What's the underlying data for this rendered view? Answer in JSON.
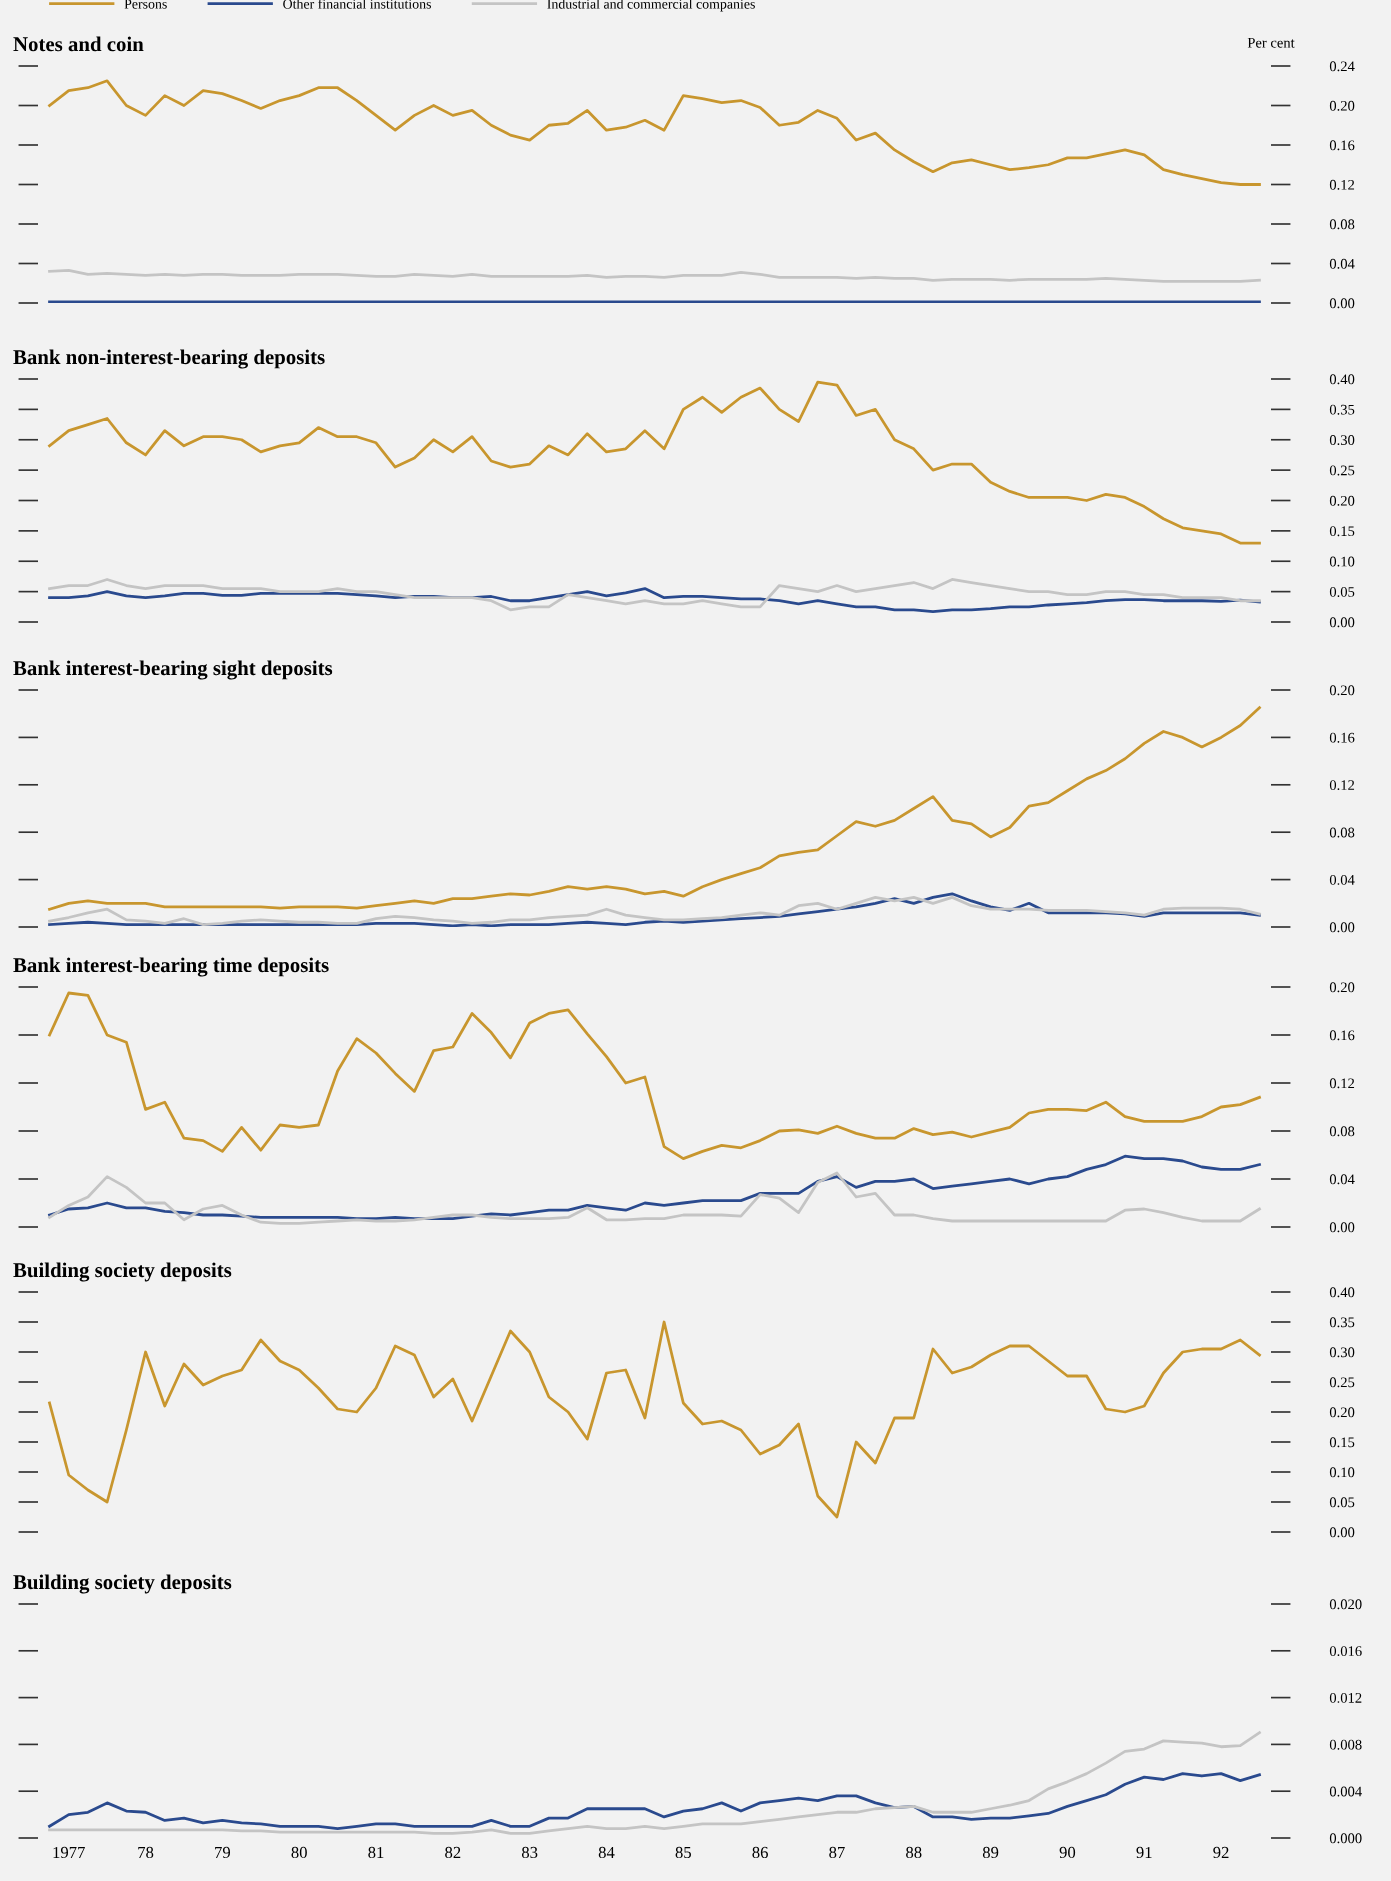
{
  "chart_data": [
    {
      "type": "line",
      "title": "Notes and coin",
      "legend": "top",
      "tick_labels": "y",
      "annotations": [
        "Per cent"
      ],
      "categories": [
        null,
        null,
        null,
        null,
        null,
        null,
        null,
        null,
        null,
        null,
        null,
        null,
        null,
        null,
        null,
        null,
        null,
        null,
        null,
        null,
        null,
        null,
        null,
        null,
        null,
        null,
        null,
        null,
        null,
        null,
        null,
        null,
        null,
        null,
        null,
        null,
        null,
        null,
        null,
        null,
        null,
        null,
        null,
        null,
        null,
        null,
        null,
        null,
        null,
        null,
        null,
        null,
        null,
        null,
        null,
        null,
        null,
        null,
        null,
        null,
        null,
        null,
        null,
        null
      ],
      "ylim": [
        0,
        0.24
      ],
      "yticks": [
        {
          "value": 0,
          "label": "0.00"
        },
        {
          "value": 0.04,
          "label": "0.04"
        },
        {
          "value": 0.08,
          "label": "0.08"
        },
        {
          "value": 0.12,
          "label": "0.12"
        },
        {
          "value": 0.16,
          "label": "0.16"
        },
        {
          "value": 0.2,
          "label": "0.20"
        },
        {
          "value": 0.24,
          "label": "0.24"
        }
      ],
      "series": [
        {
          "name": "Persons",
          "color": "#c8962e",
          "values": [
            0.2,
            0.215,
            0.218,
            0.225,
            0.2,
            0.19,
            0.21,
            0.2,
            0.215,
            0.212,
            0.205,
            0.197,
            0.205,
            0.21,
            0.218,
            0.218,
            0.205,
            0.19,
            0.175,
            0.19,
            0.2,
            0.19,
            0.195,
            0.18,
            0.17,
            0.165,
            0.18,
            0.182,
            0.195,
            0.175,
            0.178,
            0.185,
            0.175,
            0.21,
            0.207,
            0.203,
            0.205,
            0.198,
            0.18,
            0.183,
            0.195,
            0.187,
            0.165,
            0.172,
            0.155,
            0.143,
            0.133,
            0.142,
            0.145,
            0.14,
            0.135,
            0.137,
            0.14,
            0.147,
            0.147,
            0.151,
            0.155,
            0.15,
            0.135,
            0.13,
            0.126,
            0.122,
            0.12,
            0.12
          ]
        },
        {
          "name": "Other financial institutions",
          "color": "#2a4a8e",
          "values": [
            0.001,
            0.001,
            0.001,
            0.001,
            0.001,
            0.001,
            0.001,
            0.001,
            0.001,
            0.001,
            0.001,
            0.001,
            0.001,
            0.001,
            0.001,
            0.001,
            0.001,
            0.001,
            0.001,
            0.001,
            0.001,
            0.001,
            0.001,
            0.001,
            0.001,
            0.001,
            0.001,
            0.001,
            0.001,
            0.001,
            0.001,
            0.001,
            0.001,
            0.001,
            0.001,
            0.001,
            0.001,
            0.001,
            0.001,
            0.001,
            0.001,
            0.001,
            0.001,
            0.001,
            0.001,
            0.001,
            0.001,
            0.001,
            0.001,
            0.001,
            0.001,
            0.001,
            0.001,
            0.001,
            0.001,
            0.001,
            0.001,
            0.001,
            0.001,
            0.001,
            0.001,
            0.001,
            0.001,
            0.001
          ]
        },
        {
          "name": "Industrial and commercial companies",
          "color": "#c4c4c4",
          "values": [
            0.032,
            0.033,
            0.029,
            0.03,
            0.029,
            0.028,
            0.029,
            0.028,
            0.029,
            0.029,
            0.028,
            0.028,
            0.028,
            0.029,
            0.029,
            0.029,
            0.028,
            0.027,
            0.027,
            0.029,
            0.028,
            0.027,
            0.029,
            0.027,
            0.027,
            0.027,
            0.027,
            0.027,
            0.028,
            0.026,
            0.027,
            0.027,
            0.026,
            0.028,
            0.028,
            0.028,
            0.031,
            0.029,
            0.026,
            0.026,
            0.026,
            0.026,
            0.025,
            0.026,
            0.025,
            0.025,
            0.023,
            0.024,
            0.024,
            0.024,
            0.023,
            0.024,
            0.024,
            0.024,
            0.024,
            0.025,
            0.024,
            0.023,
            0.022,
            0.022,
            0.022,
            0.022,
            0.022,
            0.023
          ]
        }
      ]
    },
    {
      "type": "line",
      "title": "Bank non-interest-bearing deposits",
      "tick_labels": "y",
      "categories": [
        null,
        null,
        null,
        null,
        null,
        null,
        null,
        null,
        null,
        null,
        null,
        null,
        null,
        null,
        null,
        null,
        null,
        null,
        null,
        null,
        null,
        null,
        null,
        null,
        null,
        null,
        null,
        null,
        null,
        null,
        null,
        null,
        null,
        null,
        null,
        null,
        null,
        null,
        null,
        null,
        null,
        null,
        null,
        null,
        null,
        null,
        null,
        null,
        null,
        null,
        null,
        null,
        null,
        null,
        null,
        null,
        null,
        null,
        null,
        null,
        null,
        null,
        null,
        null
      ],
      "ylim": [
        0,
        0.4
      ],
      "yticks": [
        {
          "value": 0,
          "label": "0.00"
        },
        {
          "value": 0.05,
          "label": "0.05"
        },
        {
          "value": 0.1,
          "label": "0.10"
        },
        {
          "value": 0.15,
          "label": "0.15"
        },
        {
          "value": 0.2,
          "label": "0.20"
        },
        {
          "value": 0.25,
          "label": "0.25"
        },
        {
          "value": 0.3,
          "label": "0.30"
        },
        {
          "value": 0.35,
          "label": "0.35"
        },
        {
          "value": 0.4,
          "label": "0.40"
        }
      ],
      "series": [
        {
          "color": "#c8962e",
          "values": [
            0.29,
            0.315,
            0.325,
            0.335,
            0.295,
            0.275,
            0.315,
            0.29,
            0.305,
            0.305,
            0.3,
            0.28,
            0.29,
            0.295,
            0.32,
            0.305,
            0.305,
            0.295,
            0.255,
            0.27,
            0.3,
            0.28,
            0.305,
            0.265,
            0.255,
            0.26,
            0.29,
            0.275,
            0.31,
            0.28,
            0.285,
            0.315,
            0.285,
            0.35,
            0.37,
            0.345,
            0.37,
            0.385,
            0.35,
            0.33,
            0.395,
            0.39,
            0.34,
            0.35,
            0.3,
            0.285,
            0.25,
            0.26,
            0.26,
            0.23,
            0.215,
            0.205,
            0.205,
            0.205,
            0.2,
            0.21,
            0.205,
            0.19,
            0.17,
            0.155,
            0.15,
            0.145,
            0.13,
            0.13
          ]
        },
        {
          "color": "#2a4a8e",
          "values": [
            0.04,
            0.04,
            0.043,
            0.05,
            0.043,
            0.04,
            0.043,
            0.047,
            0.047,
            0.044,
            0.044,
            0.047,
            0.047,
            0.047,
            0.047,
            0.047,
            0.045,
            0.043,
            0.04,
            0.042,
            0.042,
            0.04,
            0.04,
            0.042,
            0.035,
            0.035,
            0.04,
            0.045,
            0.05,
            0.043,
            0.048,
            0.055,
            0.04,
            0.042,
            0.042,
            0.04,
            0.038,
            0.038,
            0.035,
            0.03,
            0.035,
            0.03,
            0.025,
            0.025,
            0.02,
            0.02,
            0.017,
            0.02,
            0.02,
            0.022,
            0.025,
            0.025,
            0.028,
            0.03,
            0.032,
            0.035,
            0.037,
            0.037,
            0.035,
            0.035,
            0.035,
            0.034,
            0.036,
            0.033
          ]
        },
        {
          "color": "#c4c4c4",
          "values": [
            0.055,
            0.06,
            0.06,
            0.07,
            0.06,
            0.055,
            0.06,
            0.06,
            0.06,
            0.055,
            0.055,
            0.055,
            0.05,
            0.05,
            0.05,
            0.055,
            0.05,
            0.05,
            0.045,
            0.04,
            0.04,
            0.04,
            0.04,
            0.035,
            0.02,
            0.025,
            0.025,
            0.045,
            0.04,
            0.035,
            0.03,
            0.035,
            0.03,
            0.03,
            0.035,
            0.03,
            0.025,
            0.025,
            0.06,
            0.055,
            0.05,
            0.06,
            0.05,
            0.055,
            0.06,
            0.065,
            0.055,
            0.07,
            0.065,
            0.06,
            0.055,
            0.05,
            0.05,
            0.045,
            0.045,
            0.05,
            0.05,
            0.045,
            0.045,
            0.04,
            0.04,
            0.04,
            0.035,
            0.035
          ]
        }
      ]
    },
    {
      "type": "line",
      "title": "Bank interest-bearing sight deposits",
      "tick_labels": "y",
      "categories": [
        null,
        null,
        null,
        null,
        null,
        null,
        null,
        null,
        null,
        null,
        null,
        null,
        null,
        null,
        null,
        null,
        null,
        null,
        null,
        null,
        null,
        null,
        null,
        null,
        null,
        null,
        null,
        null,
        null,
        null,
        null,
        null,
        null,
        null,
        null,
        null,
        null,
        null,
        null,
        null,
        null,
        null,
        null,
        null,
        null,
        null,
        null,
        null,
        null,
        null,
        null,
        null,
        null,
        null,
        null,
        null,
        null,
        null,
        null,
        null,
        null,
        null,
        null,
        null
      ],
      "ylim": [
        0,
        0.2
      ],
      "yticks": [
        {
          "value": 0,
          "label": "0.00"
        },
        {
          "value": 0.04,
          "label": "0.04"
        },
        {
          "value": 0.08,
          "label": "0.08"
        },
        {
          "value": 0.12,
          "label": "0.12"
        },
        {
          "value": 0.16,
          "label": "0.16"
        },
        {
          "value": 0.2,
          "label": "0.20"
        }
      ],
      "series": [
        {
          "color": "#c8962e",
          "values": [
            0.015,
            0.02,
            0.022,
            0.02,
            0.02,
            0.02,
            0.017,
            0.017,
            0.017,
            0.017,
            0.017,
            0.017,
            0.016,
            0.017,
            0.017,
            0.017,
            0.016,
            0.018,
            0.02,
            0.022,
            0.02,
            0.024,
            0.024,
            0.026,
            0.028,
            0.027,
            0.03,
            0.034,
            0.032,
            0.034,
            0.032,
            0.028,
            0.03,
            0.026,
            0.034,
            0.04,
            0.045,
            0.05,
            0.06,
            0.063,
            0.065,
            0.077,
            0.089,
            0.085,
            0.09,
            0.1,
            0.11,
            0.09,
            0.087,
            0.076,
            0.084,
            0.102,
            0.105,
            0.115,
            0.125,
            0.132,
            0.142,
            0.155,
            0.165,
            0.16,
            0.152,
            0.16,
            0.17,
            0.185
          ]
        },
        {
          "color": "#2a4a8e",
          "values": [
            0.002,
            0.003,
            0.004,
            0.003,
            0.002,
            0.002,
            0.002,
            0.002,
            0.002,
            0.002,
            0.002,
            0.002,
            0.002,
            0.002,
            0.002,
            0.002,
            0.002,
            0.003,
            0.003,
            0.003,
            0.002,
            0.001,
            0.002,
            0.001,
            0.002,
            0.002,
            0.002,
            0.003,
            0.004,
            0.003,
            0.002,
            0.004,
            0.005,
            0.004,
            0.005,
            0.006,
            0.007,
            0.008,
            0.009,
            0.011,
            0.013,
            0.015,
            0.017,
            0.02,
            0.024,
            0.02,
            0.025,
            0.028,
            0.022,
            0.017,
            0.014,
            0.02,
            0.012,
            0.012,
            0.012,
            0.012,
            0.011,
            0.009,
            0.012,
            0.012,
            0.012,
            0.012,
            0.012,
            0.01
          ]
        },
        {
          "color": "#c4c4c4",
          "values": [
            0.005,
            0.008,
            0.012,
            0.015,
            0.006,
            0.005,
            0.003,
            0.007,
            0.002,
            0.003,
            0.005,
            0.006,
            0.005,
            0.004,
            0.004,
            0.003,
            0.003,
            0.007,
            0.009,
            0.008,
            0.006,
            0.005,
            0.003,
            0.004,
            0.006,
            0.006,
            0.008,
            0.009,
            0.01,
            0.015,
            0.01,
            0.008,
            0.006,
            0.006,
            0.007,
            0.008,
            0.01,
            0.012,
            0.01,
            0.018,
            0.02,
            0.015,
            0.02,
            0.025,
            0.022,
            0.025,
            0.02,
            0.025,
            0.018,
            0.015,
            0.015,
            0.015,
            0.014,
            0.014,
            0.014,
            0.013,
            0.012,
            0.01,
            0.015,
            0.016,
            0.016,
            0.016,
            0.015,
            0.011
          ]
        }
      ]
    },
    {
      "type": "line",
      "title": "Bank interest-bearing time deposits",
      "tick_labels": "y",
      "categories": [
        null,
        null,
        null,
        null,
        null,
        null,
        null,
        null,
        null,
        null,
        null,
        null,
        null,
        null,
        null,
        null,
        null,
        null,
        null,
        null,
        null,
        null,
        null,
        null,
        null,
        null,
        null,
        null,
        null,
        null,
        null,
        null,
        null,
        null,
        null,
        null,
        null,
        null,
        null,
        null,
        null,
        null,
        null,
        null,
        null,
        null,
        null,
        null,
        null,
        null,
        null,
        null,
        null,
        null,
        null,
        null,
        null,
        null,
        null,
        null,
        null,
        null,
        null,
        null
      ],
      "ylim": [
        0,
        0.2
      ],
      "yticks": [
        {
          "value": 0,
          "label": "0.00"
        },
        {
          "value": 0.04,
          "label": "0.04"
        },
        {
          "value": 0.08,
          "label": "0.08"
        },
        {
          "value": 0.12,
          "label": "0.12"
        },
        {
          "value": 0.16,
          "label": "0.16"
        },
        {
          "value": 0.2,
          "label": "0.20"
        }
      ],
      "series": [
        {
          "color": "#c8962e",
          "values": [
            0.16,
            0.195,
            0.193,
            0.16,
            0.154,
            0.098,
            0.104,
            0.074,
            0.072,
            0.063,
            0.083,
            0.064,
            0.085,
            0.083,
            0.085,
            0.13,
            0.157,
            0.145,
            0.128,
            0.113,
            0.147,
            0.15,
            0.178,
            0.162,
            0.141,
            0.17,
            0.178,
            0.181,
            0.161,
            0.142,
            0.12,
            0.125,
            0.067,
            0.057,
            0.063,
            0.068,
            0.066,
            0.072,
            0.08,
            0.081,
            0.078,
            0.084,
            0.078,
            0.074,
            0.074,
            0.082,
            0.077,
            0.079,
            0.075,
            0.079,
            0.083,
            0.095,
            0.098,
            0.098,
            0.097,
            0.104,
            0.092,
            0.088,
            0.088,
            0.088,
            0.092,
            0.1,
            0.102,
            0.108
          ]
        },
        {
          "color": "#2a4a8e",
          "values": [
            0.01,
            0.015,
            0.016,
            0.02,
            0.016,
            0.016,
            0.013,
            0.012,
            0.01,
            0.01,
            0.009,
            0.008,
            0.008,
            0.008,
            0.008,
            0.008,
            0.007,
            0.007,
            0.008,
            0.007,
            0.007,
            0.007,
            0.009,
            0.011,
            0.01,
            0.012,
            0.014,
            0.014,
            0.018,
            0.016,
            0.014,
            0.02,
            0.018,
            0.02,
            0.022,
            0.022,
            0.022,
            0.028,
            0.028,
            0.028,
            0.038,
            0.042,
            0.033,
            0.038,
            0.038,
            0.04,
            0.032,
            0.034,
            0.036,
            0.038,
            0.04,
            0.036,
            0.04,
            0.042,
            0.048,
            0.052,
            0.059,
            0.057,
            0.057,
            0.055,
            0.05,
            0.048,
            0.048,
            0.052
          ]
        },
        {
          "color": "#c4c4c4",
          "values": [
            0.008,
            0.018,
            0.025,
            0.042,
            0.033,
            0.02,
            0.02,
            0.006,
            0.015,
            0.018,
            0.01,
            0.004,
            0.003,
            0.003,
            0.004,
            0.005,
            0.006,
            0.005,
            0.005,
            0.006,
            0.008,
            0.01,
            0.01,
            0.008,
            0.007,
            0.007,
            0.007,
            0.008,
            0.016,
            0.006,
            0.006,
            0.007,
            0.007,
            0.01,
            0.01,
            0.01,
            0.009,
            0.027,
            0.024,
            0.012,
            0.037,
            0.045,
            0.025,
            0.028,
            0.01,
            0.01,
            0.007,
            0.005,
            0.005,
            0.005,
            0.005,
            0.005,
            0.005,
            0.005,
            0.005,
            0.005,
            0.014,
            0.015,
            0.012,
            0.008,
            0.005,
            0.005,
            0.005,
            0.015
          ]
        }
      ]
    },
    {
      "type": "line",
      "title": "Building society deposits",
      "tick_labels": "y",
      "categories": [
        null,
        null,
        null,
        null,
        null,
        null,
        null,
        null,
        null,
        null,
        null,
        null,
        null,
        null,
        null,
        null,
        null,
        null,
        null,
        null,
        null,
        null,
        null,
        null,
        null,
        null,
        null,
        null,
        null,
        null,
        null,
        null,
        null,
        null,
        null,
        null,
        null,
        null,
        null,
        null,
        null,
        null,
        null,
        null,
        null,
        null,
        null,
        null,
        null,
        null,
        null,
        null,
        null,
        null,
        null,
        null,
        null,
        null,
        null,
        null,
        null,
        null,
        null,
        null
      ],
      "ylim": [
        0,
        0.4
      ],
      "yticks": [
        {
          "value": 0,
          "label": "0.00"
        },
        {
          "value": 0.05,
          "label": "0.05"
        },
        {
          "value": 0.1,
          "label": "0.10"
        },
        {
          "value": 0.15,
          "label": "0.15"
        },
        {
          "value": 0.2,
          "label": "0.20"
        },
        {
          "value": 0.25,
          "label": "0.25"
        },
        {
          "value": 0.3,
          "label": "0.30"
        },
        {
          "value": 0.35,
          "label": "0.35"
        },
        {
          "value": 0.4,
          "label": "0.40"
        }
      ],
      "series": [
        {
          "color": "#c8962e",
          "values": [
            0.215,
            0.095,
            0.07,
            0.05,
            0.17,
            0.3,
            0.21,
            0.28,
            0.245,
            0.26,
            0.27,
            0.32,
            0.285,
            0.27,
            0.24,
            0.205,
            0.2,
            0.24,
            0.31,
            0.295,
            0.225,
            0.255,
            0.185,
            0.26,
            0.335,
            0.3,
            0.225,
            0.2,
            0.155,
            0.265,
            0.27,
            0.19,
            0.35,
            0.215,
            0.18,
            0.185,
            0.17,
            0.13,
            0.145,
            0.18,
            0.06,
            0.025,
            0.15,
            0.115,
            0.19,
            0.19,
            0.305,
            0.265,
            0.275,
            0.295,
            0.31,
            0.31,
            0.285,
            0.26,
            0.26,
            0.205,
            0.2,
            0.21,
            0.265,
            0.3,
            0.305,
            0.305,
            0.32,
            0.295
          ]
        }
      ]
    },
    {
      "type": "line",
      "title": "Building society deposits",
      "categories": [
        null,
        "1977",
        null,
        null,
        null,
        "78",
        null,
        null,
        null,
        "79",
        null,
        null,
        null,
        "80",
        null,
        null,
        null,
        "81",
        null,
        null,
        null,
        "82",
        null,
        null,
        null,
        "83",
        null,
        null,
        null,
        "84",
        null,
        null,
        null,
        "85",
        null,
        null,
        null,
        "86",
        null,
        null,
        null,
        "87",
        null,
        null,
        null,
        "88",
        null,
        null,
        null,
        "89",
        null,
        null,
        null,
        "90",
        null,
        null,
        null,
        "91",
        null,
        null,
        null,
        "92",
        null,
        null
      ],
      "ylim": [
        0,
        0.02
      ],
      "yticks": [
        {
          "value": 0,
          "label": "0.000"
        },
        {
          "value": 0.004,
          "label": "0.004"
        },
        {
          "value": 0.008,
          "label": "0.008"
        },
        {
          "value": 0.012,
          "label": "0.012"
        },
        {
          "value": 0.016,
          "label": "0.016"
        },
        {
          "value": 0.02,
          "label": "0.020"
        }
      ],
      "series": [
        {
          "color": "#2a4a8e",
          "values": [
            0.001,
            0.002,
            0.0022,
            0.003,
            0.0023,
            0.0022,
            0.0015,
            0.0017,
            0.0013,
            0.0015,
            0.0013,
            0.0012,
            0.001,
            0.001,
            0.001,
            0.0008,
            0.001,
            0.0012,
            0.0012,
            0.001,
            0.001,
            0.001,
            0.001,
            0.0015,
            0.001,
            0.001,
            0.0017,
            0.0017,
            0.0025,
            0.0025,
            0.0025,
            0.0025,
            0.0018,
            0.0023,
            0.0025,
            0.003,
            0.0023,
            0.003,
            0.0032,
            0.0034,
            0.0032,
            0.0036,
            0.0036,
            0.003,
            0.0026,
            0.0027,
            0.0018,
            0.0018,
            0.0016,
            0.0017,
            0.0017,
            0.0019,
            0.0021,
            0.0027,
            0.0032,
            0.0037,
            0.0046,
            0.0052,
            0.005,
            0.0055,
            0.0053,
            0.0055,
            0.0049,
            0.0054
          ]
        },
        {
          "color": "#c4c4c4",
          "values": [
            0.0007,
            0.0007,
            0.0007,
            0.0007,
            0.0007,
            0.0007,
            0.0007,
            0.0007,
            0.0007,
            0.0007,
            0.0006,
            0.0006,
            0.0005,
            0.0005,
            0.0005,
            0.0005,
            0.0005,
            0.0005,
            0.0005,
            0.0005,
            0.0004,
            0.0004,
            0.0005,
            0.0007,
            0.0004,
            0.0004,
            0.0006,
            0.0008,
            0.001,
            0.0008,
            0.0008,
            0.001,
            0.0008,
            0.001,
            0.0012,
            0.0012,
            0.0012,
            0.0014,
            0.0016,
            0.0018,
            0.002,
            0.0022,
            0.0022,
            0.0025,
            0.0026,
            0.0027,
            0.0022,
            0.0022,
            0.0022,
            0.0025,
            0.0028,
            0.0032,
            0.0042,
            0.0048,
            0.0055,
            0.0064,
            0.0074,
            0.0076,
            0.0083,
            0.0082,
            0.0081,
            0.0078,
            0.0079,
            0.009
          ]
        }
      ]
    }
  ]
}
